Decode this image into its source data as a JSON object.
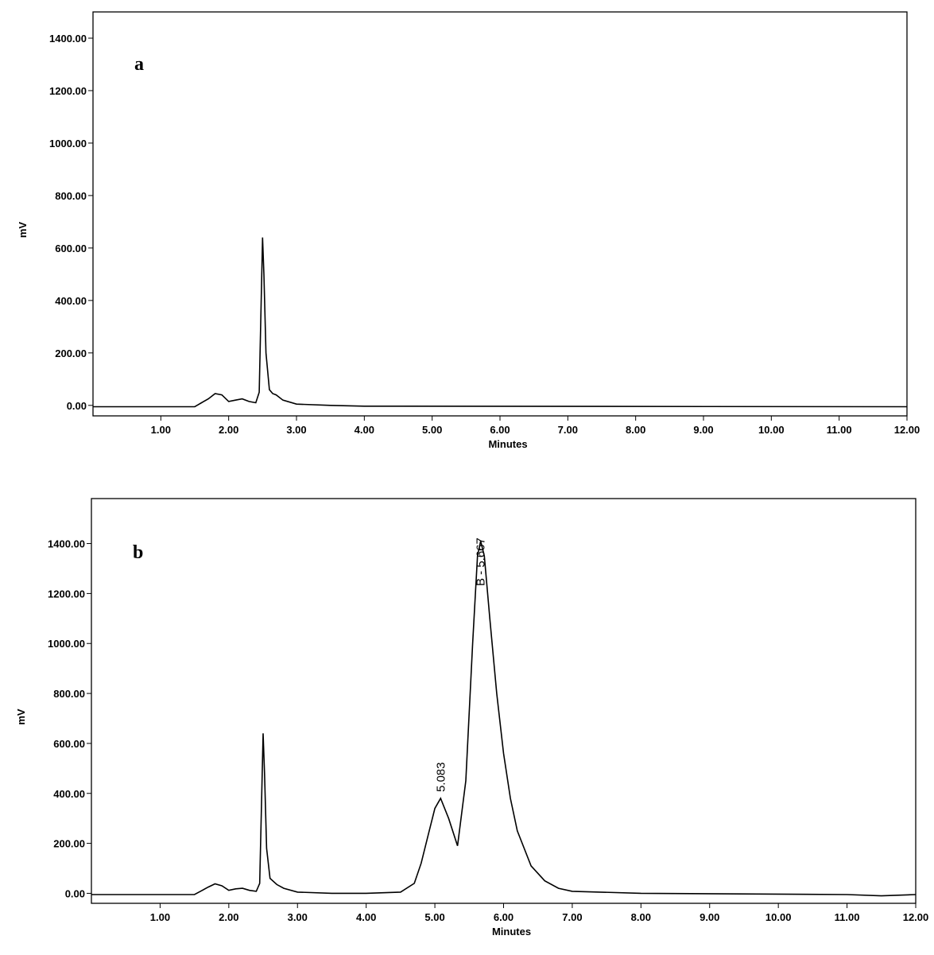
{
  "chart_data": [
    {
      "type": "line",
      "panel_label": "a",
      "xlabel": "Minutes",
      "ylabel": "mV",
      "color": "#000000",
      "xlim": [
        0,
        12
      ],
      "ylim": [
        -40,
        1500
      ],
      "xticks": [
        {
          "value": 1,
          "label": "1.00"
        },
        {
          "value": 2,
          "label": "2.00"
        },
        {
          "value": 3,
          "label": "3.00"
        },
        {
          "value": 4,
          "label": "4.00"
        },
        {
          "value": 5,
          "label": "5.00"
        },
        {
          "value": 6,
          "label": "6.00"
        },
        {
          "value": 7,
          "label": "7.00"
        },
        {
          "value": 8,
          "label": "8.00"
        },
        {
          "value": 9,
          "label": "9.00"
        },
        {
          "value": 10,
          "label": "10.00"
        },
        {
          "value": 11,
          "label": "11.00"
        },
        {
          "value": 12,
          "label": "12.00"
        }
      ],
      "yticks": [
        {
          "value": 0,
          "label": "0.00"
        },
        {
          "value": 200,
          "label": "200.00"
        },
        {
          "value": 400,
          "label": "400.00"
        },
        {
          "value": 600,
          "label": "600.00"
        },
        {
          "value": 800,
          "label": "800.00"
        },
        {
          "value": 1000,
          "label": "1000.00"
        },
        {
          "value": 1200,
          "label": "1200.00"
        },
        {
          "value": 1400,
          "label": "1400.00"
        }
      ],
      "x": [
        0,
        1.5,
        1.6,
        1.7,
        1.8,
        1.9,
        2.0,
        2.1,
        2.2,
        2.3,
        2.4,
        2.45,
        2.48,
        2.5,
        2.52,
        2.55,
        2.6,
        2.65,
        2.7,
        2.8,
        3.0,
        3.5,
        4.0,
        12
      ],
      "values": [
        -5,
        -5,
        10,
        25,
        45,
        40,
        15,
        20,
        25,
        15,
        10,
        50,
        400,
        640,
        500,
        200,
        60,
        45,
        40,
        20,
        5,
        0,
        -3,
        -5
      ],
      "annotations": []
    },
    {
      "type": "line",
      "panel_label": "b",
      "xlabel": "Minutes",
      "ylabel": "mV",
      "color": "#000000",
      "xlim": [
        0,
        12
      ],
      "ylim": [
        -40,
        1580
      ],
      "xticks": [
        {
          "value": 1,
          "label": "1.00"
        },
        {
          "value": 2,
          "label": "2.00"
        },
        {
          "value": 3,
          "label": "3.00"
        },
        {
          "value": 4,
          "label": "4.00"
        },
        {
          "value": 5,
          "label": "5.00"
        },
        {
          "value": 6,
          "label": "6.00"
        },
        {
          "value": 7,
          "label": "7.00"
        },
        {
          "value": 8,
          "label": "8.00"
        },
        {
          "value": 9,
          "label": "9.00"
        },
        {
          "value": 10,
          "label": "10.00"
        },
        {
          "value": 11,
          "label": "11.00"
        },
        {
          "value": 12,
          "label": "12.00"
        }
      ],
      "yticks": [
        {
          "value": 0,
          "label": "0.00"
        },
        {
          "value": 200,
          "label": "200.00"
        },
        {
          "value": 400,
          "label": "400.00"
        },
        {
          "value": 600,
          "label": "600.00"
        },
        {
          "value": 800,
          "label": "800.00"
        },
        {
          "value": 1000,
          "label": "1000.00"
        },
        {
          "value": 1200,
          "label": "1200.00"
        },
        {
          "value": 1400,
          "label": "1400.00"
        }
      ],
      "x": [
        0,
        1.5,
        1.6,
        1.7,
        1.8,
        1.9,
        2.0,
        2.1,
        2.2,
        2.3,
        2.4,
        2.45,
        2.48,
        2.5,
        2.52,
        2.55,
        2.6,
        2.7,
        2.8,
        3.0,
        3.5,
        4.0,
        4.5,
        4.7,
        4.8,
        4.9,
        5.0,
        5.083,
        5.2,
        5.33,
        5.45,
        5.55,
        5.62,
        5.667,
        5.72,
        5.8,
        5.9,
        6.0,
        6.1,
        6.2,
        6.4,
        6.6,
        6.8,
        7.0,
        8.0,
        11.0,
        11.5,
        12
      ],
      "values": [
        -5,
        -5,
        10,
        25,
        38,
        30,
        12,
        18,
        20,
        12,
        8,
        40,
        400,
        640,
        480,
        180,
        60,
        35,
        20,
        5,
        0,
        0,
        5,
        40,
        120,
        230,
        340,
        380,
        300,
        190,
        450,
        1000,
        1350,
        1410,
        1350,
        1100,
        800,
        560,
        380,
        250,
        110,
        50,
        20,
        8,
        0,
        -5,
        -10,
        -5
      ],
      "annotations": [
        {
          "text": "5.083",
          "x": 5.083,
          "y": 380
        },
        {
          "text": "B - 5.667",
          "x": 5.667,
          "y": 1410
        }
      ]
    }
  ]
}
